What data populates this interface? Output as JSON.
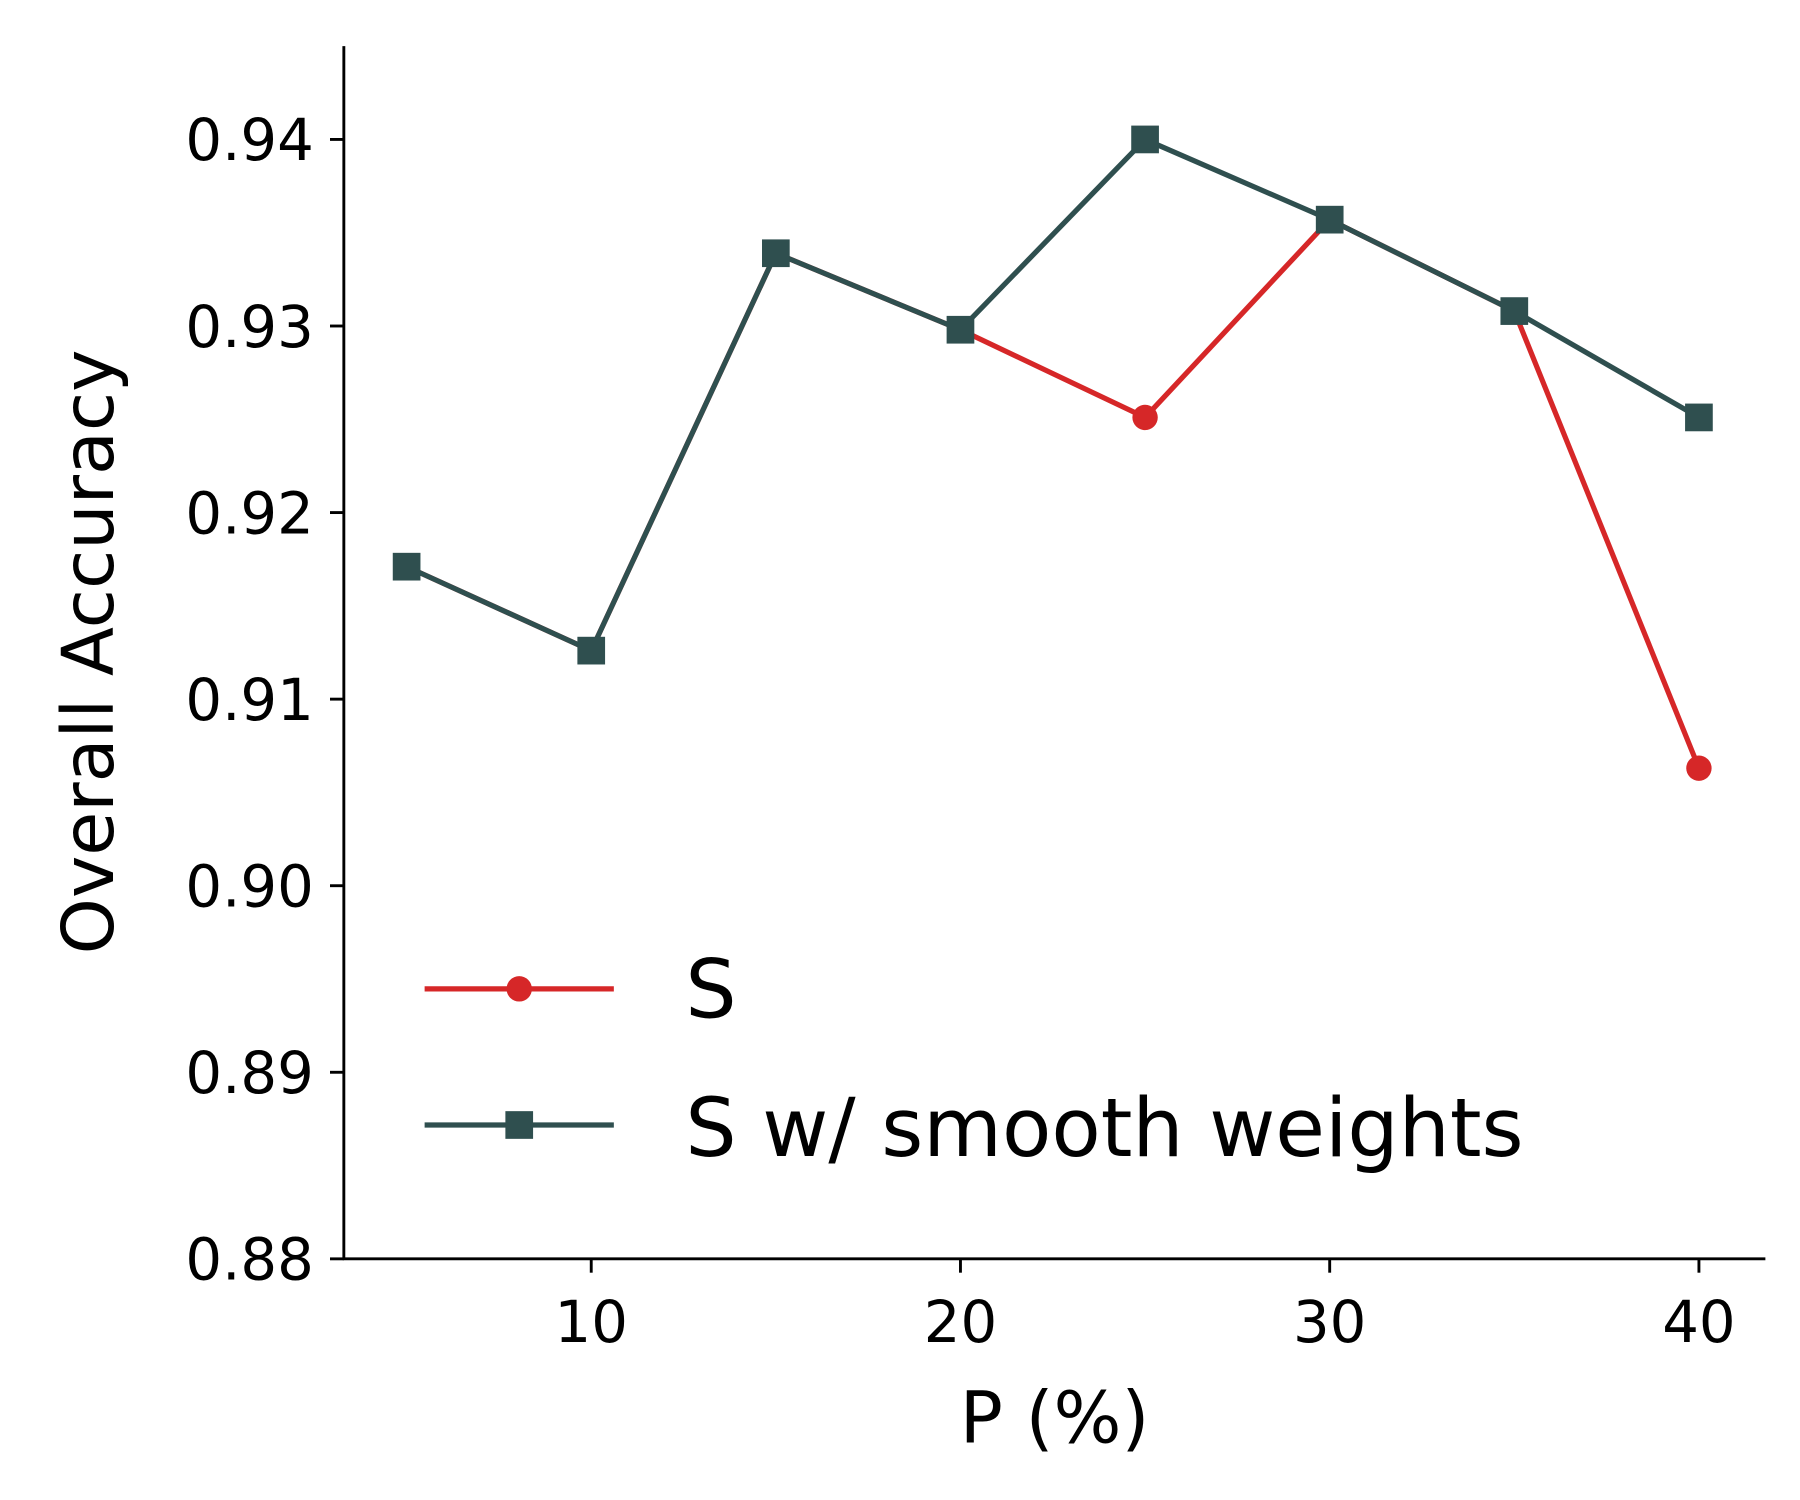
{
  "chart_data": {
    "type": "line",
    "xlabel": "P (%)",
    "ylabel": "Overall Accuracy",
    "xlim": [
      3.3,
      41.8
    ],
    "ylim": [
      0.88,
      0.945
    ],
    "xticks": [
      10,
      20,
      30,
      40
    ],
    "xtick_labels": [
      "10",
      "20",
      "30",
      "40"
    ],
    "yticks": [
      0.88,
      0.89,
      0.9,
      0.91,
      0.92,
      0.93,
      0.94
    ],
    "ytick_labels": [
      "0.88",
      "0.89",
      "0.90",
      "0.91",
      "0.92",
      "0.93",
      "0.94"
    ],
    "grid": false,
    "legend_placement": "lower-left",
    "x": [
      5,
      10,
      15,
      20,
      25,
      30,
      35,
      40
    ],
    "series": [
      {
        "name": "S",
        "color": "#d62728",
        "marker": "circle",
        "values": [
          0.9171,
          0.9126,
          0.9339,
          0.9298,
          0.9251,
          0.9357,
          0.9308,
          0.9063
        ]
      },
      {
        "name": "S w/ smooth weights",
        "color": "#2f4f4f",
        "marker": "square",
        "values": [
          0.9171,
          0.9126,
          0.9339,
          0.9298,
          0.94,
          0.9357,
          0.9308,
          0.9251
        ]
      }
    ]
  }
}
